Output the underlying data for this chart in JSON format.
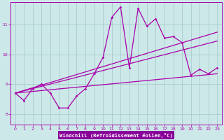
{
  "bg_color": "#cce8e8",
  "grid_color": "#aacccc",
  "line_color": "#aa00aa",
  "xlabel": "Windchill (Refroidissement éolien,°C)",
  "xlabel_bg": "#8800aa",
  "x_ticks": [
    0,
    1,
    2,
    3,
    4,
    5,
    6,
    7,
    8,
    9,
    10,
    11,
    12,
    13,
    14,
    15,
    16,
    17,
    18,
    19,
    20,
    21,
    22,
    23
  ],
  "y_ticks": [
    8,
    9,
    10,
    11
  ],
  "xlim": [
    -0.5,
    23.5
  ],
  "ylim": [
    7.65,
    11.75
  ],
  "series1": [
    8.7,
    8.45,
    8.85,
    9.0,
    8.7,
    8.2,
    8.2,
    8.6,
    8.85,
    9.35,
    9.9,
    11.25,
    11.6,
    9.55,
    11.55,
    10.95,
    11.2,
    10.55,
    10.6,
    10.4,
    9.3,
    9.5,
    9.35,
    9.55
  ],
  "trend1_x": [
    0,
    23
  ],
  "trend1_y": [
    8.7,
    10.75
  ],
  "trend2_x": [
    0,
    23
  ],
  "trend2_y": [
    8.7,
    10.45
  ],
  "trend3_x": [
    0,
    23
  ],
  "trend3_y": [
    8.7,
    9.35
  ]
}
